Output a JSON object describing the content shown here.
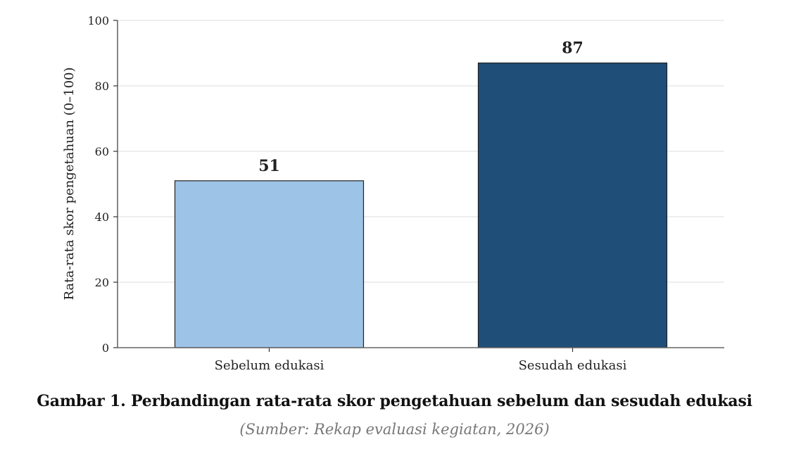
{
  "chart_data": {
    "type": "bar",
    "categories": [
      "Sebelum edukasi",
      "Sesudah edukasi"
    ],
    "values": [
      51,
      87
    ],
    "value_labels": [
      "51",
      "87"
    ],
    "ylabel": "Rata-rata skor pengetahuan (0–100)",
    "xlabel": "",
    "ylim": [
      0,
      100
    ],
    "yticks": [
      0,
      20,
      40,
      60,
      80,
      100
    ],
    "ytick_labels": [
      "0",
      "20",
      "40",
      "60",
      "80",
      "100"
    ],
    "grid": "horizontal",
    "legend": "none",
    "bar_colors": [
      "#9dc3e6",
      "#1f4e79"
    ]
  },
  "figure": {
    "caption": "Gambar 1. Perbandingan rata-rata skor pengetahuan sebelum dan sesudah edukasi",
    "source": "(Sumber: Rekap evaluasi kegiatan, 2026)"
  }
}
